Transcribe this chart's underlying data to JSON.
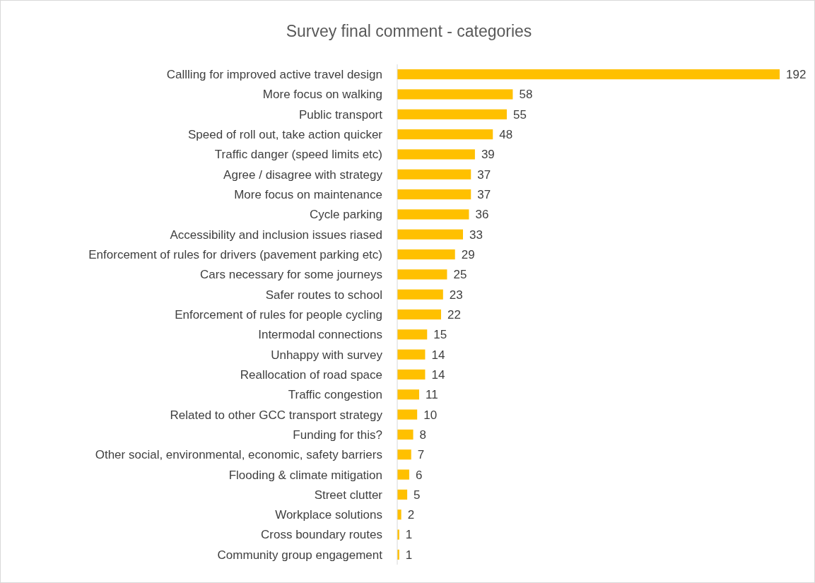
{
  "chart_data": {
    "type": "bar",
    "orientation": "horizontal",
    "title": "Survey final comment - categories",
    "categories": [
      "Callling for improved active travel design",
      "More focus on walking",
      "Public transport",
      "Speed of roll out, take action quicker",
      "Traffic danger (speed limits etc)",
      "Agree / disagree with strategy",
      "More focus on maintenance",
      "Cycle parking",
      "Accessibility and inclusion issues riased",
      "Enforcement of rules for drivers (pavement parking etc)",
      "Cars necessary for some journeys",
      "Safer routes to school",
      "Enforcement of rules for people cycling",
      "Intermodal connections",
      "Unhappy with survey",
      "Reallocation of road space",
      "Traffic congestion",
      "Related to other GCC transport strategy",
      "Funding for this?",
      "Other social, environmental, economic, safety barriers",
      "Flooding & climate mitigation",
      "Street clutter",
      "Workplace solutions",
      "Cross boundary routes",
      "Community group engagement"
    ],
    "values": [
      192,
      58,
      55,
      48,
      39,
      37,
      37,
      36,
      33,
      29,
      25,
      23,
      22,
      15,
      14,
      14,
      11,
      10,
      8,
      7,
      6,
      5,
      2,
      1,
      1
    ],
    "color": "#ffc000",
    "data_labels": true
  }
}
